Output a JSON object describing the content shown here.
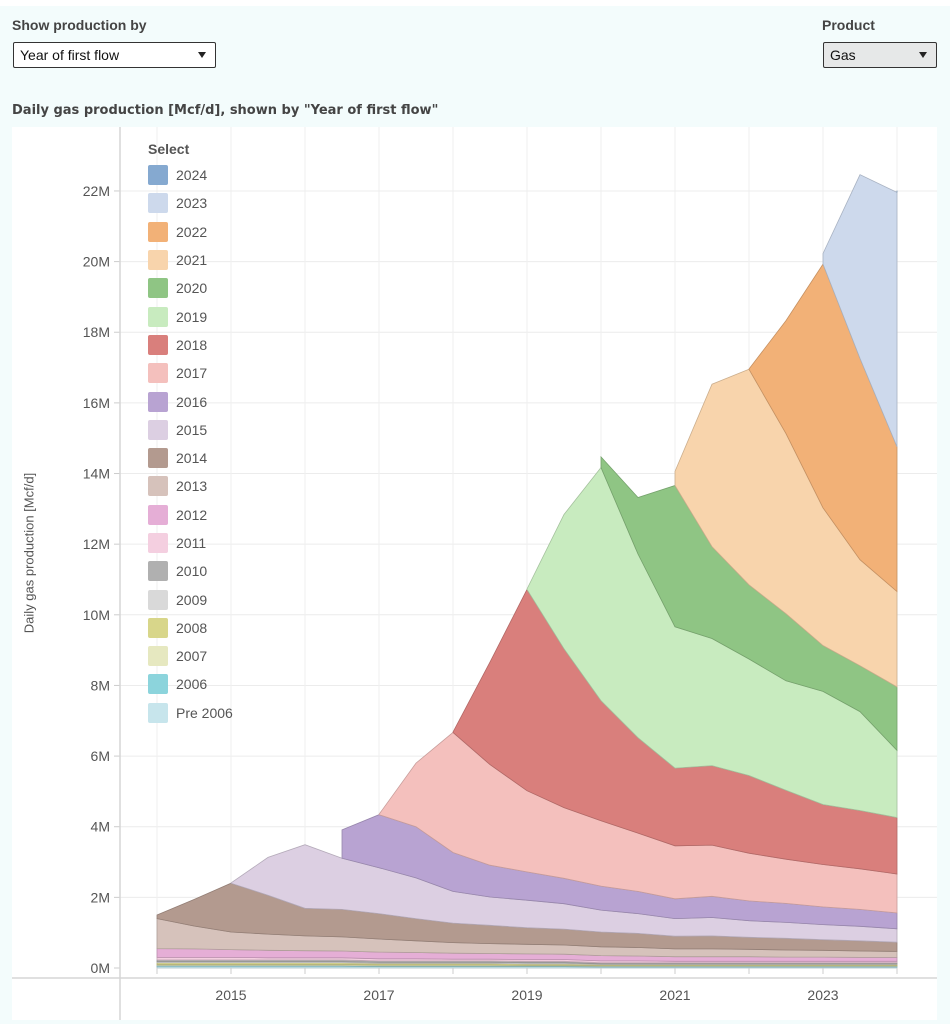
{
  "controls": {
    "show_by": {
      "label": "Show production by",
      "value": "Year of first flow"
    },
    "product": {
      "label": "Product",
      "value": "Gas"
    }
  },
  "chart_data": {
    "type": "area",
    "stacked": true,
    "title": "Daily gas production [Mcf/d], shown by \"Year of first flow\"",
    "xlabel": "",
    "ylabel": "Daily gas production [Mcf/d]",
    "ylim": [
      0,
      23
    ],
    "y_unit": "M",
    "xlim": [
      2012.5,
      2024.5
    ],
    "x_ticks": [
      "2015",
      "2017",
      "2019",
      "2021",
      "2023"
    ],
    "y_ticks": [
      "0M",
      "2M",
      "4M",
      "6M",
      "8M",
      "10M",
      "12M",
      "14M",
      "16M",
      "18M",
      "20M",
      "22M"
    ],
    "grid": true,
    "legend_title": "Select",
    "legend_position": "top-left",
    "x": [
      2014.0,
      2014.5,
      2015.0,
      2015.5,
      2016.0,
      2016.5,
      2017.0,
      2017.5,
      2018.0,
      2018.5,
      2019.0,
      2019.5,
      2020.0,
      2020.5,
      2021.0,
      2021.5,
      2022.0,
      2022.5,
      2023.0,
      2023.5,
      2024.0
    ],
    "series": [
      {
        "name": "Pre 2006",
        "color": "#c7e5ec",
        "values": [
          0.05,
          0.05,
          0.05,
          0.05,
          0.05,
          0.05,
          0.04,
          0.04,
          0.04,
          0.04,
          0.04,
          0.04,
          0.03,
          0.03,
          0.03,
          0.03,
          0.03,
          0.03,
          0.03,
          0.03,
          0.03
        ]
      },
      {
        "name": "2006",
        "color": "#8cd4dc",
        "values": [
          0.02,
          0.02,
          0.02,
          0.02,
          0.02,
          0.02,
          0.02,
          0.02,
          0.02,
          0.02,
          0.02,
          0.02,
          0.02,
          0.02,
          0.02,
          0.02,
          0.02,
          0.02,
          0.02,
          0.02,
          0.02
        ]
      },
      {
        "name": "2007",
        "color": "#e6e8c0",
        "values": [
          0.03,
          0.03,
          0.03,
          0.03,
          0.03,
          0.03,
          0.03,
          0.03,
          0.03,
          0.03,
          0.02,
          0.02,
          0.02,
          0.02,
          0.02,
          0.02,
          0.02,
          0.02,
          0.02,
          0.02,
          0.02
        ]
      },
      {
        "name": "2008",
        "color": "#d8d68a",
        "values": [
          0.05,
          0.05,
          0.05,
          0.05,
          0.05,
          0.05,
          0.04,
          0.04,
          0.04,
          0.04,
          0.04,
          0.04,
          0.03,
          0.03,
          0.03,
          0.03,
          0.03,
          0.03,
          0.03,
          0.03,
          0.03
        ]
      },
      {
        "name": "2009",
        "color": "#d9d9d9",
        "values": [
          0.03,
          0.03,
          0.03,
          0.03,
          0.03,
          0.03,
          0.03,
          0.03,
          0.03,
          0.03,
          0.03,
          0.03,
          0.02,
          0.02,
          0.02,
          0.02,
          0.02,
          0.02,
          0.02,
          0.02,
          0.02
        ]
      },
      {
        "name": "2010",
        "color": "#b0b0b0",
        "values": [
          0.05,
          0.05,
          0.05,
          0.05,
          0.05,
          0.05,
          0.04,
          0.04,
          0.04,
          0.04,
          0.04,
          0.04,
          0.03,
          0.03,
          0.03,
          0.03,
          0.03,
          0.03,
          0.03,
          0.03,
          0.03
        ]
      },
      {
        "name": "2011",
        "color": "#f4cfe0",
        "values": [
          0.07,
          0.07,
          0.07,
          0.06,
          0.06,
          0.06,
          0.06,
          0.06,
          0.05,
          0.05,
          0.05,
          0.05,
          0.05,
          0.05,
          0.04,
          0.04,
          0.04,
          0.04,
          0.04,
          0.04,
          0.04
        ]
      },
      {
        "name": "2012",
        "color": "#e5aed6",
        "values": [
          0.25,
          0.24,
          0.22,
          0.21,
          0.2,
          0.19,
          0.19,
          0.18,
          0.17,
          0.16,
          0.16,
          0.15,
          0.15,
          0.14,
          0.13,
          0.13,
          0.13,
          0.12,
          0.12,
          0.11,
          0.11
        ]
      },
      {
        "name": "2013",
        "color": "#d6c2bb",
        "values": [
          0.85,
          0.65,
          0.5,
          0.46,
          0.42,
          0.4,
          0.37,
          0.33,
          0.3,
          0.28,
          0.27,
          0.26,
          0.25,
          0.24,
          0.22,
          0.22,
          0.21,
          0.2,
          0.19,
          0.18,
          0.17
        ]
      },
      {
        "name": "2014",
        "color": "#b39a8f",
        "values": [
          0.1,
          0.75,
          1.38,
          1.1,
          0.78,
          0.78,
          0.72,
          0.63,
          0.55,
          0.52,
          0.47,
          0.45,
          0.42,
          0.4,
          0.36,
          0.37,
          0.34,
          0.33,
          0.3,
          0.29,
          0.26
        ]
      },
      {
        "name": "2015",
        "color": "#dccfe2",
        "values": [
          0,
          0,
          0.01,
          1.07,
          1.8,
          1.45,
          1.3,
          1.15,
          0.9,
          0.8,
          0.78,
          0.72,
          0.62,
          0.56,
          0.5,
          0.52,
          0.47,
          0.45,
          0.43,
          0.41,
          0.38
        ]
      },
      {
        "name": "2016",
        "color": "#b8a3d2",
        "values": [
          0,
          0,
          0,
          0,
          0,
          0.8,
          1.5,
          1.45,
          1.1,
          0.9,
          0.8,
          0.72,
          0.68,
          0.63,
          0.56,
          0.6,
          0.56,
          0.54,
          0.5,
          0.48,
          0.45
        ]
      },
      {
        "name": "2017",
        "color": "#f4c0bd",
        "values": [
          0,
          0,
          0,
          0,
          0,
          0,
          0.01,
          1.8,
          3.4,
          2.85,
          2.3,
          2.0,
          1.85,
          1.65,
          1.5,
          1.45,
          1.35,
          1.25,
          1.2,
          1.15,
          1.1
        ]
      },
      {
        "name": "2018",
        "color": "#d97f7c",
        "values": [
          0,
          0,
          0,
          0,
          0,
          0,
          0,
          0,
          0.01,
          2.9,
          5.7,
          4.5,
          3.4,
          2.7,
          2.2,
          2.25,
          2.2,
          1.95,
          1.7,
          1.65,
          1.6
        ]
      },
      {
        "name": "2019",
        "color": "#c8ebbf",
        "values": [
          0,
          0,
          0,
          0,
          0,
          0,
          0,
          0,
          0,
          0,
          0.01,
          3.8,
          6.6,
          5.2,
          4.0,
          3.6,
          3.3,
          3.1,
          3.2,
          2.8,
          1.9
        ]
      },
      {
        "name": "2020",
        "color": "#8fc584",
        "values": [
          0,
          0,
          0,
          0,
          0,
          0,
          0,
          0,
          0,
          0,
          0,
          0,
          0.3,
          1.6,
          4.0,
          2.6,
          2.1,
          1.9,
          1.3,
          1.3,
          1.8
        ]
      },
      {
        "name": "2021",
        "color": "#f8d4ac",
        "values": [
          0,
          0,
          0,
          0,
          0,
          0,
          0,
          0,
          0,
          0,
          0,
          0,
          0,
          0,
          0.4,
          4.6,
          6.1,
          5.1,
          3.9,
          3.0,
          2.7
        ]
      },
      {
        "name": "2022",
        "color": "#f2b177",
        "values": [
          0,
          0,
          0,
          0,
          0,
          0,
          0,
          0,
          0,
          0,
          0,
          0,
          0,
          0,
          0,
          0,
          0.01,
          3.2,
          6.9,
          5.7,
          4.1
        ]
      },
      {
        "name": "2023",
        "color": "#cdd9ec",
        "values": [
          0,
          0,
          0,
          0,
          0,
          0,
          0,
          0,
          0,
          0,
          0,
          0,
          0,
          0,
          0,
          0,
          0,
          0,
          0.3,
          5.2,
          7.2
        ]
      },
      {
        "name": "2024",
        "color": "#85a9d0",
        "values": [
          0,
          0,
          0,
          0,
          0,
          0,
          0,
          0,
          0,
          0,
          0,
          0,
          0,
          0,
          0,
          0,
          0,
          0,
          0,
          0,
          0.05
        ]
      }
    ]
  }
}
